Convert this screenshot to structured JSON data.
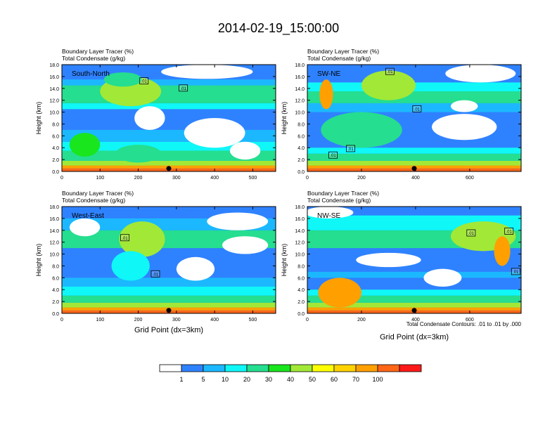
{
  "title": "2014-02-19_15:00:00",
  "colors": {
    "levels": [
      "#ffffff",
      "#2f82ff",
      "#1cb8ff",
      "#0ff7f7",
      "#25de8f",
      "#19e61d",
      "#a2e837",
      "#ffff00",
      "#ffd200",
      "#ffa000",
      "#ff6618",
      "#ff1a1a"
    ],
    "frame": "#000000",
    "contour": "#000000"
  },
  "y_axis_label": "Height (km)",
  "x_axis_label": "Grid Point (dx=3km)",
  "contour_note": "Total Condensate Contours: .01 to .01 by .000",
  "chart_data": [
    {
      "type": "heatmap",
      "panel_label": "South-North",
      "left_title_1": "Boundary Layer Tracer   (%)",
      "left_title_2": "Total Condensate   (g/kg)",
      "xlim": [
        0,
        560
      ],
      "ylim": [
        0,
        18
      ],
      "x_ticks": [
        "0",
        "100",
        "200",
        "300",
        "400",
        "500"
      ],
      "x_tick_values": [
        0,
        100,
        200,
        300,
        400,
        500
      ],
      "y_ticks": [
        "0.0",
        "2.0",
        "4.0",
        "6.0",
        "8.0",
        "10.0",
        "12.0",
        "14.0",
        "16.0",
        "18.0"
      ],
      "y_tick_values": [
        0,
        2,
        4,
        6,
        8,
        10,
        12,
        14,
        16,
        18
      ],
      "marker_x": 280,
      "contour_labels": [
        {
          "text": ".01",
          "x": 215,
          "y": 15.2
        },
        {
          "text": ".01",
          "x": 318,
          "y": 14.0
        }
      ],
      "bands": [
        {
          "y0": 0,
          "y1": 0.5,
          "v": 100
        },
        {
          "y0": 0.5,
          "y1": 1.0,
          "v": 75
        },
        {
          "y0": 1.0,
          "y1": 1.8,
          "v": 45
        },
        {
          "y0": 1.8,
          "y1": 3.5,
          "v": 22
        },
        {
          "y0": 3.5,
          "y1": 5.0,
          "v": 12
        },
        {
          "y0": 5.0,
          "y1": 7.0,
          "v": 6
        },
        {
          "y0": 10.5,
          "y1": 11.5,
          "v": 10
        },
        {
          "y0": 11.5,
          "y1": 13.5,
          "v": 28
        },
        {
          "y0": 13.5,
          "y1": 14.5,
          "v": 20
        },
        {
          "y0": 14.5,
          "y1": 15.5,
          "v": 8
        }
      ],
      "blobs": [
        {
          "x": 180,
          "y": 13.5,
          "rx": 80,
          "ry": 2.5,
          "v": 45
        },
        {
          "x": 160,
          "y": 15.5,
          "rx": 50,
          "ry": 1.2,
          "v": 28
        },
        {
          "x": 60,
          "y": 4.5,
          "rx": 40,
          "ry": 2,
          "v": 35
        },
        {
          "x": 200,
          "y": 3.0,
          "rx": 60,
          "ry": 1.5,
          "v": 28
        },
        {
          "x": 400,
          "y": 6.5,
          "rx": 80,
          "ry": 2.5,
          "v": 0
        },
        {
          "x": 480,
          "y": 3.5,
          "rx": 40,
          "ry": 1.5,
          "v": 0
        },
        {
          "x": 230,
          "y": 9.0,
          "rx": 40,
          "ry": 2,
          "v": 0
        },
        {
          "x": 380,
          "y": 16.8,
          "rx": 120,
          "ry": 1.2,
          "v": 0
        }
      ]
    },
    {
      "type": "heatmap",
      "panel_label": "SW-NE",
      "left_title_1": "Boundary Layer Tracer   (%)",
      "left_title_2": "Total Condensate   (g/kg)",
      "xlim": [
        0,
        790
      ],
      "ylim": [
        0,
        18
      ],
      "x_ticks": [
        "0",
        "200",
        "400",
        "600"
      ],
      "x_tick_values": [
        0,
        200,
        400,
        600
      ],
      "y_ticks": [
        "0.0",
        "2.0",
        "4.0",
        "6.0",
        "8.0",
        "10.0",
        "12.0",
        "14.0",
        "16.0",
        "18.0"
      ],
      "y_tick_values": [
        0,
        2,
        4,
        6,
        8,
        10,
        12,
        14,
        16,
        18
      ],
      "marker_x": 395,
      "contour_labels": [
        {
          "text": ".01",
          "x": 305,
          "y": 16.8
        },
        {
          "text": ".01",
          "x": 405,
          "y": 10.5
        },
        {
          "text": ".01",
          "x": 95,
          "y": 2.7
        },
        {
          "text": ".01",
          "x": 160,
          "y": 3.8
        }
      ],
      "bands": [
        {
          "y0": 0,
          "y1": 0.5,
          "v": 100
        },
        {
          "y0": 0.5,
          "y1": 1.0,
          "v": 75
        },
        {
          "y0": 1.0,
          "y1": 1.8,
          "v": 45
        },
        {
          "y0": 1.8,
          "y1": 3.0,
          "v": 22
        },
        {
          "y0": 3.0,
          "y1": 4.0,
          "v": 12
        },
        {
          "y0": 10.0,
          "y1": 11.5,
          "v": 8
        },
        {
          "y0": 11.5,
          "y1": 13.5,
          "v": 26
        },
        {
          "y0": 13.5,
          "y1": 15.0,
          "v": 15
        }
      ],
      "blobs": [
        {
          "x": 70,
          "y": 13.0,
          "rx": 25,
          "ry": 2.5,
          "v": 75
        },
        {
          "x": 300,
          "y": 14.5,
          "rx": 100,
          "ry": 2.5,
          "v": 40
        },
        {
          "x": 200,
          "y": 7.0,
          "rx": 150,
          "ry": 3,
          "v": 22
        },
        {
          "x": 580,
          "y": 7.5,
          "rx": 120,
          "ry": 2.2,
          "v": 0
        },
        {
          "x": 640,
          "y": 16.5,
          "rx": 130,
          "ry": 1.5,
          "v": 0
        },
        {
          "x": 580,
          "y": 11.0,
          "rx": 50,
          "ry": 1,
          "v": 0
        }
      ]
    },
    {
      "type": "heatmap",
      "panel_label": "West-East",
      "left_title_1": "Boundary Layer Tracer   (%)",
      "left_title_2": "Total Condensate   (g/kg)",
      "xlim": [
        0,
        560
      ],
      "ylim": [
        0,
        18
      ],
      "x_ticks": [
        "0",
        "100",
        "200",
        "300",
        "400",
        "500"
      ],
      "x_tick_values": [
        0,
        100,
        200,
        300,
        400,
        500
      ],
      "y_ticks": [
        "0.0",
        "2.0",
        "4.0",
        "6.0",
        "8.0",
        "10.0",
        "12.0",
        "14.0",
        "16.0",
        "18.0"
      ],
      "y_tick_values": [
        0,
        2,
        4,
        6,
        8,
        10,
        12,
        14,
        16,
        18
      ],
      "marker_x": 280,
      "contour_labels": [
        {
          "text": ".01",
          "x": 165,
          "y": 12.7
        },
        {
          "text": ".01",
          "x": 245,
          "y": 6.6
        }
      ],
      "bands": [
        {
          "y0": 0,
          "y1": 0.5,
          "v": 100
        },
        {
          "y0": 0.5,
          "y1": 1.0,
          "v": 75
        },
        {
          "y0": 1.0,
          "y1": 1.8,
          "v": 40
        },
        {
          "y0": 1.8,
          "y1": 3.0,
          "v": 24
        },
        {
          "y0": 3.0,
          "y1": 4.5,
          "v": 14
        },
        {
          "y0": 4.5,
          "y1": 6.0,
          "v": 6
        },
        {
          "y0": 11.0,
          "y1": 14.0,
          "v": 22
        },
        {
          "y0": 14.0,
          "y1": 16.0,
          "v": 8
        }
      ],
      "blobs": [
        {
          "x": 210,
          "y": 12.5,
          "rx": 60,
          "ry": 3,
          "v": 45
        },
        {
          "x": 180,
          "y": 8.0,
          "rx": 50,
          "ry": 2.5,
          "v": 12
        },
        {
          "x": 60,
          "y": 14.5,
          "rx": 40,
          "ry": 1.5,
          "v": 0
        },
        {
          "x": 350,
          "y": 7.5,
          "rx": 50,
          "ry": 2,
          "v": 0
        },
        {
          "x": 480,
          "y": 11.5,
          "rx": 60,
          "ry": 1.5,
          "v": 0
        },
        {
          "x": 460,
          "y": 15.5,
          "rx": 80,
          "ry": 1.5,
          "v": 0
        }
      ]
    },
    {
      "type": "heatmap",
      "panel_label": "NW-SE",
      "left_title_1": "Boundary Layer Tracer   (%)",
      "left_title_2": "Total Condensate   (g/kg)",
      "xlim": [
        0,
        790
      ],
      "ylim": [
        0,
        18
      ],
      "x_ticks": [
        "0",
        "200",
        "400",
        "600"
      ],
      "x_tick_values": [
        0,
        200,
        400,
        600
      ],
      "y_ticks": [
        "0.0",
        "2.0",
        "4.0",
        "6.0",
        "8.0",
        "10.0",
        "12.0",
        "14.0",
        "16.0",
        "18.0"
      ],
      "y_tick_values": [
        0,
        2,
        4,
        6,
        8,
        10,
        12,
        14,
        16,
        18
      ],
      "marker_x": 395,
      "contour_labels": [
        {
          "text": ".01",
          "x": 605,
          "y": 13.5
        },
        {
          "text": ".01",
          "x": 745,
          "y": 13.8
        },
        {
          "text": ".01",
          "x": 770,
          "y": 7.0
        }
      ],
      "bands": [
        {
          "y0": 0,
          "y1": 0.5,
          "v": 100
        },
        {
          "y0": 0.5,
          "y1": 1.0,
          "v": 75
        },
        {
          "y0": 1.0,
          "y1": 1.8,
          "v": 40
        },
        {
          "y0": 1.8,
          "y1": 3.0,
          "v": 22
        },
        {
          "y0": 3.0,
          "y1": 4.0,
          "v": 10
        },
        {
          "y0": 6.0,
          "y1": 7.0,
          "v": 6
        },
        {
          "y0": 11.0,
          "y1": 14.0,
          "v": 24
        },
        {
          "y0": 14.0,
          "y1": 16.5,
          "v": 12
        }
      ],
      "blobs": [
        {
          "x": 120,
          "y": 3.5,
          "rx": 80,
          "ry": 2.5,
          "v": 70
        },
        {
          "x": 650,
          "y": 13.0,
          "rx": 120,
          "ry": 2.5,
          "v": 40
        },
        {
          "x": 720,
          "y": 10.5,
          "rx": 30,
          "ry": 2.5,
          "v": 70
        },
        {
          "x": 300,
          "y": 9.0,
          "rx": 120,
          "ry": 1.2,
          "v": 0
        },
        {
          "x": 500,
          "y": 6.0,
          "rx": 70,
          "ry": 1.5,
          "v": 0
        },
        {
          "x": 80,
          "y": 17.0,
          "rx": 90,
          "ry": 1.0,
          "v": 0
        }
      ]
    }
  ],
  "legend": {
    "labels": [
      "1",
      "5",
      "10",
      "20",
      "30",
      "40",
      "50",
      "60",
      "70",
      "100"
    ],
    "thresholds": [
      1,
      5,
      10,
      20,
      30,
      40,
      50,
      60,
      70,
      100
    ]
  }
}
